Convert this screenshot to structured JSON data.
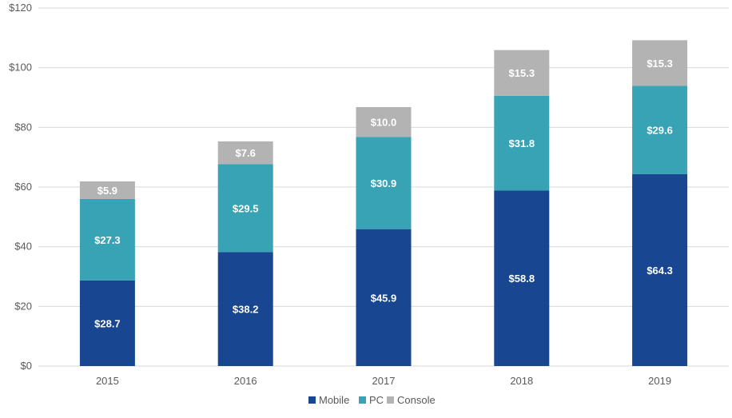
{
  "chart_data": {
    "type": "bar",
    "stacked": true,
    "categories": [
      "2015",
      "2016",
      "2017",
      "2018",
      "2019"
    ],
    "series": [
      {
        "name": "Mobile",
        "values": [
          28.7,
          38.2,
          45.9,
          58.8,
          64.3
        ],
        "labels": [
          "$28.7",
          "$38.2",
          "$45.9",
          "$58.8",
          "$64.3"
        ],
        "color": "#184690"
      },
      {
        "name": "PC",
        "values": [
          27.3,
          29.5,
          30.9,
          31.8,
          29.6
        ],
        "labels": [
          "$27.3",
          "$29.5",
          "$30.9",
          "$31.8",
          "$29.6"
        ],
        "color": "#38a3b5"
      },
      {
        "name": "Console",
        "values": [
          5.9,
          7.6,
          10.0,
          15.3,
          15.3
        ],
        "labels": [
          "$5.9",
          "$7.6",
          "$10.0",
          "$15.3",
          "$15.3"
        ],
        "color": "#b3b3b3"
      }
    ],
    "ylim": [
      0,
      120
    ],
    "yticks": [
      0,
      20,
      40,
      60,
      80,
      100,
      120
    ],
    "ytick_labels": [
      "$0",
      "$20",
      "$40",
      "$60",
      "$80",
      "$100",
      "$120"
    ],
    "grid": true,
    "legend_position": "bottom-center",
    "title": "",
    "xlabel": "",
    "ylabel": "",
    "colors": {
      "grid": "#d9d9d9",
      "axis_text": "#595959",
      "data_label": "#ffffff"
    }
  }
}
